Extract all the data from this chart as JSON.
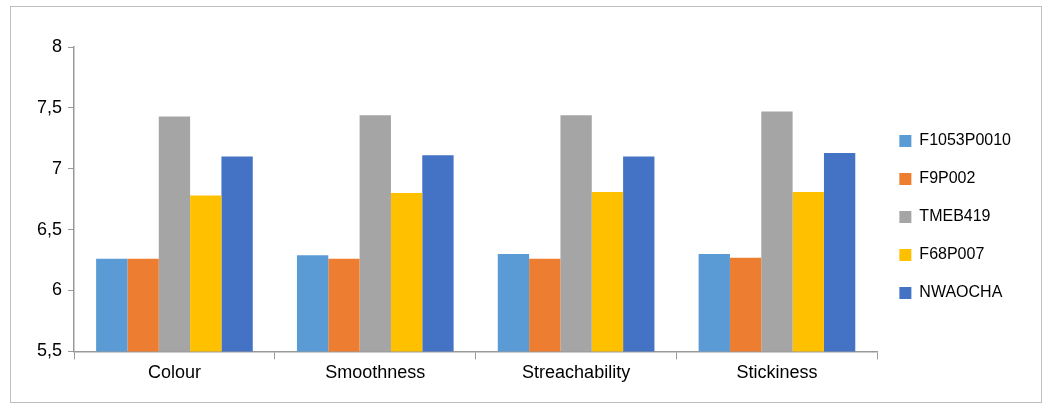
{
  "chart_data": {
    "type": "bar",
    "categories": [
      "Colour",
      "Smoothness",
      "Streachability",
      "Stickiness"
    ],
    "series": [
      {
        "name": "F1053P0010",
        "color": "#5b9bd5",
        "values": [
          6.26,
          6.29,
          6.3,
          6.3
        ]
      },
      {
        "name": "F9P002",
        "color": "#ed7d31",
        "values": [
          6.26,
          6.26,
          6.26,
          6.27
        ]
      },
      {
        "name": "TMEB419",
        "color": "#a5a5a5",
        "values": [
          7.43,
          7.44,
          7.44,
          7.47
        ]
      },
      {
        "name": "F68P007",
        "color": "#ffc000",
        "values": [
          6.78,
          6.8,
          6.81,
          6.81
        ]
      },
      {
        "name": "NWAOCHA",
        "color": "#4472c4",
        "values": [
          7.1,
          7.11,
          7.1,
          7.13
        ]
      }
    ],
    "ylim": [
      5.5,
      8
    ],
    "yticks": [
      {
        "value": 5.5,
        "label": "5,5"
      },
      {
        "value": 6,
        "label": "6"
      },
      {
        "value": 6.5,
        "label": "6,5"
      },
      {
        "value": 7,
        "label": "7"
      },
      {
        "value": 7.5,
        "label": "7,5"
      },
      {
        "value": 8,
        "label": "8"
      }
    ],
    "grid": false,
    "legend": "right"
  }
}
